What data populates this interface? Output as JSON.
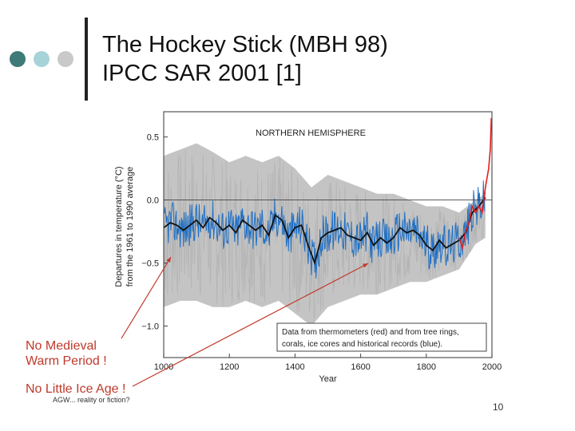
{
  "slide": {
    "title_line1": "The Hockey Stick (MBH 98)",
    "title_line2": "IPCC SAR 2001 [1]",
    "note_medieval_line1": "No Medieval",
    "note_medieval_line2": "Warm Period !",
    "note_little_ice_age": "No Little Ice Age !",
    "footer": "AGW... reality or fiction?",
    "page_number": "10",
    "colors": {
      "dot1": "#3e7a78",
      "dot2": "#a6d3d8",
      "dot3": "#c9c9c9",
      "annotation": "#c0392b"
    }
  },
  "chart_data": {
    "type": "line",
    "panel_title": "NORTHERN HEMISPHERE",
    "xlabel": "Year",
    "ylabel_line1": "Departures in temperature (°C)",
    "ylabel_line2": "from the 1961 to 1990 average",
    "xlim": [
      1000,
      2000
    ],
    "ylim": [
      -1.25,
      0.7
    ],
    "xticks": [
      1000,
      1200,
      1400,
      1600,
      1800,
      2000
    ],
    "yticks": [
      0.5,
      0.0,
      -0.5,
      -1.0
    ],
    "ytick_labels": [
      "0.5",
      "0.0",
      "−0.5",
      "−1.0"
    ],
    "legend_line1": "Data from thermometers (red) and from tree rings,",
    "legend_line2": "corals, ice cores and historical records (blue).",
    "series": [
      {
        "name": "Smoothed reconstruction (black)",
        "color": "#111111",
        "x": [
          1000,
          1020,
          1040,
          1060,
          1080,
          1100,
          1120,
          1140,
          1160,
          1180,
          1200,
          1220,
          1240,
          1260,
          1280,
          1300,
          1320,
          1340,
          1360,
          1380,
          1400,
          1420,
          1440,
          1460,
          1480,
          1500,
          1520,
          1540,
          1560,
          1580,
          1600,
          1620,
          1640,
          1660,
          1680,
          1700,
          1720,
          1740,
          1760,
          1780,
          1800,
          1820,
          1840,
          1860,
          1880,
          1900,
          1920,
          1940,
          1960,
          1980
        ],
        "y": [
          -0.22,
          -0.18,
          -0.2,
          -0.24,
          -0.2,
          -0.16,
          -0.22,
          -0.14,
          -0.18,
          -0.24,
          -0.2,
          -0.26,
          -0.16,
          -0.2,
          -0.24,
          -0.2,
          -0.28,
          -0.12,
          -0.16,
          -0.3,
          -0.22,
          -0.2,
          -0.36,
          -0.5,
          -0.3,
          -0.26,
          -0.24,
          -0.22,
          -0.28,
          -0.3,
          -0.32,
          -0.26,
          -0.36,
          -0.3,
          -0.34,
          -0.3,
          -0.22,
          -0.26,
          -0.24,
          -0.28,
          -0.36,
          -0.4,
          -0.32,
          -0.38,
          -0.35,
          -0.32,
          -0.26,
          -0.1,
          -0.05,
          0.02
        ]
      },
      {
        "name": "Reconstruction upper uncertainty (grey band)",
        "color": "#c4c4c4",
        "x": [
          1000,
          1050,
          1100,
          1150,
          1200,
          1250,
          1300,
          1350,
          1400,
          1450,
          1500,
          1550,
          1600,
          1650,
          1700,
          1750,
          1800,
          1850,
          1900,
          1950,
          1980
        ],
        "y": [
          0.35,
          0.4,
          0.45,
          0.38,
          0.3,
          0.35,
          0.3,
          0.35,
          0.25,
          0.1,
          0.2,
          0.15,
          0.1,
          0.05,
          0.05,
          0.0,
          -0.05,
          -0.05,
          -0.1,
          0.0,
          0.05
        ]
      },
      {
        "name": "Reconstruction lower uncertainty (grey band)",
        "color": "#c4c4c4",
        "x": [
          1000,
          1050,
          1100,
          1150,
          1200,
          1250,
          1300,
          1350,
          1400,
          1450,
          1500,
          1550,
          1600,
          1650,
          1700,
          1750,
          1800,
          1850,
          1900,
          1950,
          1980
        ],
        "y": [
          -0.85,
          -0.8,
          -0.8,
          -0.85,
          -0.85,
          -0.8,
          -0.85,
          -0.8,
          -0.9,
          -1.0,
          -0.85,
          -0.8,
          -0.75,
          -0.75,
          -0.7,
          -0.65,
          -0.65,
          -0.6,
          -0.55,
          -0.35,
          -0.3
        ]
      },
      {
        "name": "Thermometer record (red)",
        "color": "#e02020",
        "x": [
          1900,
          1910,
          1920,
          1930,
          1940,
          1950,
          1960,
          1970,
          1980,
          1990,
          1995,
          1998
        ],
        "y": [
          -0.3,
          -0.38,
          -0.25,
          -0.18,
          -0.05,
          -0.1,
          -0.05,
          -0.1,
          0.1,
          0.25,
          0.4,
          0.65
        ]
      }
    ]
  }
}
